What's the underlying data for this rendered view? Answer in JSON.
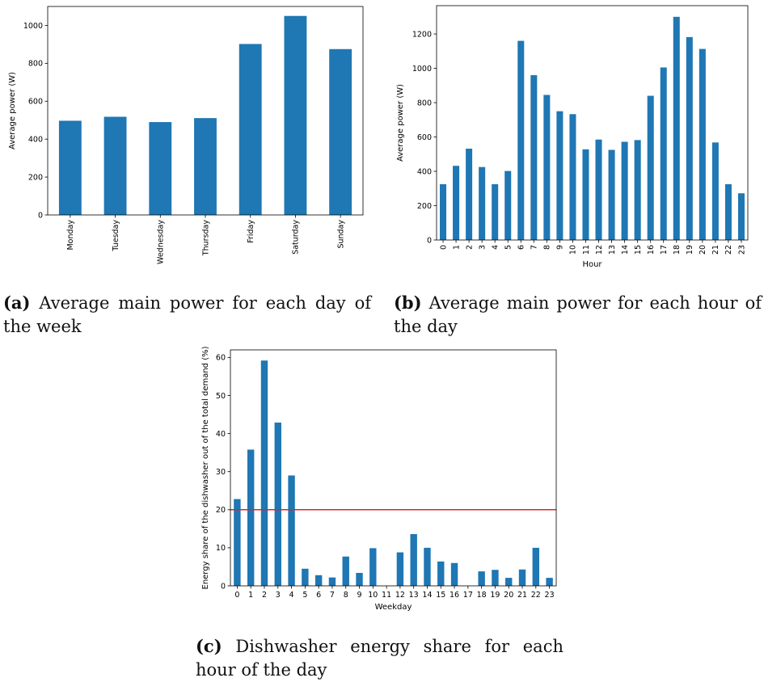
{
  "figure": {
    "captions": [
      {
        "label": "(a)",
        "text": "Average main power for each day of the week"
      },
      {
        "label": "(b)",
        "text": "Average main power for each hour of the day"
      },
      {
        "label": "(c)",
        "text": "Dishwasher energy share for each hour of the day"
      }
    ]
  },
  "colors": {
    "bar": "#1f77b4",
    "threshold": "#d62728"
  },
  "chart_data": [
    {
      "id": "a",
      "type": "bar",
      "categories": [
        "Monday",
        "Tuesday",
        "Wednesday",
        "Thursday",
        "Friday",
        "Saturday",
        "Sunday"
      ],
      "values": [
        497,
        518,
        490,
        511,
        902,
        1050,
        875
      ],
      "title": "",
      "xlabel": "",
      "ylabel": "Average power (W)",
      "ylim": [
        0,
        1100
      ],
      "yticks": [
        0,
        200,
        400,
        600,
        800,
        1000
      ],
      "xtick_rotation": 90,
      "grid": false,
      "legend": "none"
    },
    {
      "id": "b",
      "type": "bar",
      "categories": [
        "0",
        "1",
        "2",
        "3",
        "4",
        "5",
        "6",
        "7",
        "8",
        "9",
        "10",
        "11",
        "12",
        "13",
        "14",
        "15",
        "16",
        "17",
        "18",
        "19",
        "20",
        "21",
        "22",
        "23"
      ],
      "values": [
        325,
        432,
        532,
        425,
        325,
        402,
        1160,
        960,
        845,
        750,
        733,
        528,
        585,
        525,
        572,
        582,
        840,
        1005,
        1300,
        1182,
        1113,
        568,
        325,
        272
      ],
      "title": "",
      "xlabel": "Hour",
      "ylabel": "Average power (W)",
      "ylim": [
        0,
        1365
      ],
      "yticks": [
        0,
        200,
        400,
        600,
        800,
        1000,
        1200
      ],
      "xtick_rotation": 90,
      "grid": false,
      "legend": "none"
    },
    {
      "id": "c",
      "type": "bar",
      "categories": [
        "0",
        "1",
        "2",
        "3",
        "4",
        "5",
        "6",
        "7",
        "8",
        "9",
        "10",
        "11",
        "12",
        "13",
        "14",
        "15",
        "16",
        "17",
        "18",
        "19",
        "20",
        "21",
        "22",
        "23"
      ],
      "values": [
        22.8,
        35.8,
        59.2,
        42.9,
        29.0,
        4.5,
        2.8,
        2.2,
        7.7,
        3.4,
        9.9,
        0,
        8.8,
        13.6,
        10.0,
        6.4,
        6.0,
        0,
        3.8,
        4.2,
        2.1,
        4.3,
        10.0,
        2.1
      ],
      "threshold": 20,
      "title": "",
      "xlabel": "Weekday",
      "ylabel": "Energy share of the dishwasher out of the total demand (%)",
      "ylim": [
        0,
        62
      ],
      "yticks": [
        0,
        10,
        20,
        30,
        40,
        50,
        60
      ],
      "xtick_rotation": 0,
      "grid": false,
      "legend": "none"
    }
  ]
}
